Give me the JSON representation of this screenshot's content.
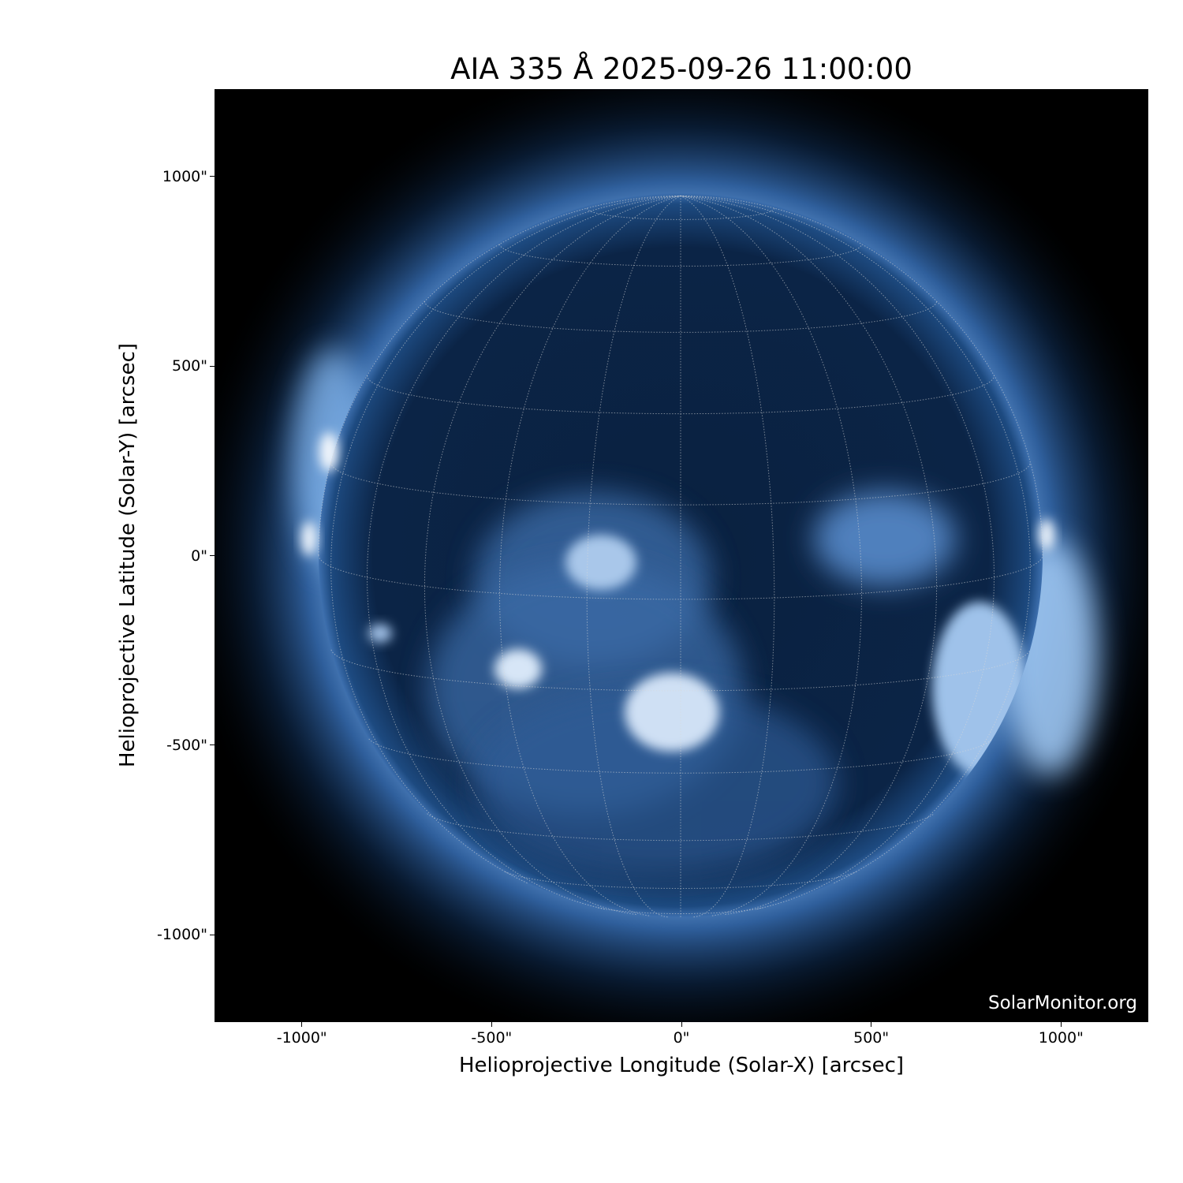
{
  "chart_data": {
    "type": "image",
    "title": "AIA 335 Å 2025-09-26 11:00:00",
    "xlabel": "Helioprojective Longitude (Solar-X) [arcsec]",
    "ylabel": "Helioprojective Latitude (Solar-Y) [arcsec]",
    "xlim": [
      -1230,
      1230
    ],
    "ylim": [
      -1230,
      1230
    ],
    "x_ticks": [
      -1000,
      -500,
      0,
      500,
      1000
    ],
    "x_tick_labels": [
      "-1000\"",
      "-500\"",
      "0\"",
      "500\"",
      "1000\""
    ],
    "y_ticks": [
      1000,
      500,
      0,
      -500,
      -1000
    ],
    "y_tick_labels": [
      "1000\"",
      "500\"",
      "0\"",
      "-500\"",
      "-1000\""
    ],
    "solar_radius_arcsec": 955,
    "grid": "heliographic, 15° spacing, dotted",
    "colormap": "sdoaia335 (black-blue-white)",
    "colors": {
      "background": "#000000",
      "disk": "#0d2a4f",
      "bright": "#dfeaf7"
    }
  },
  "watermark": "SolarMonitor.org"
}
